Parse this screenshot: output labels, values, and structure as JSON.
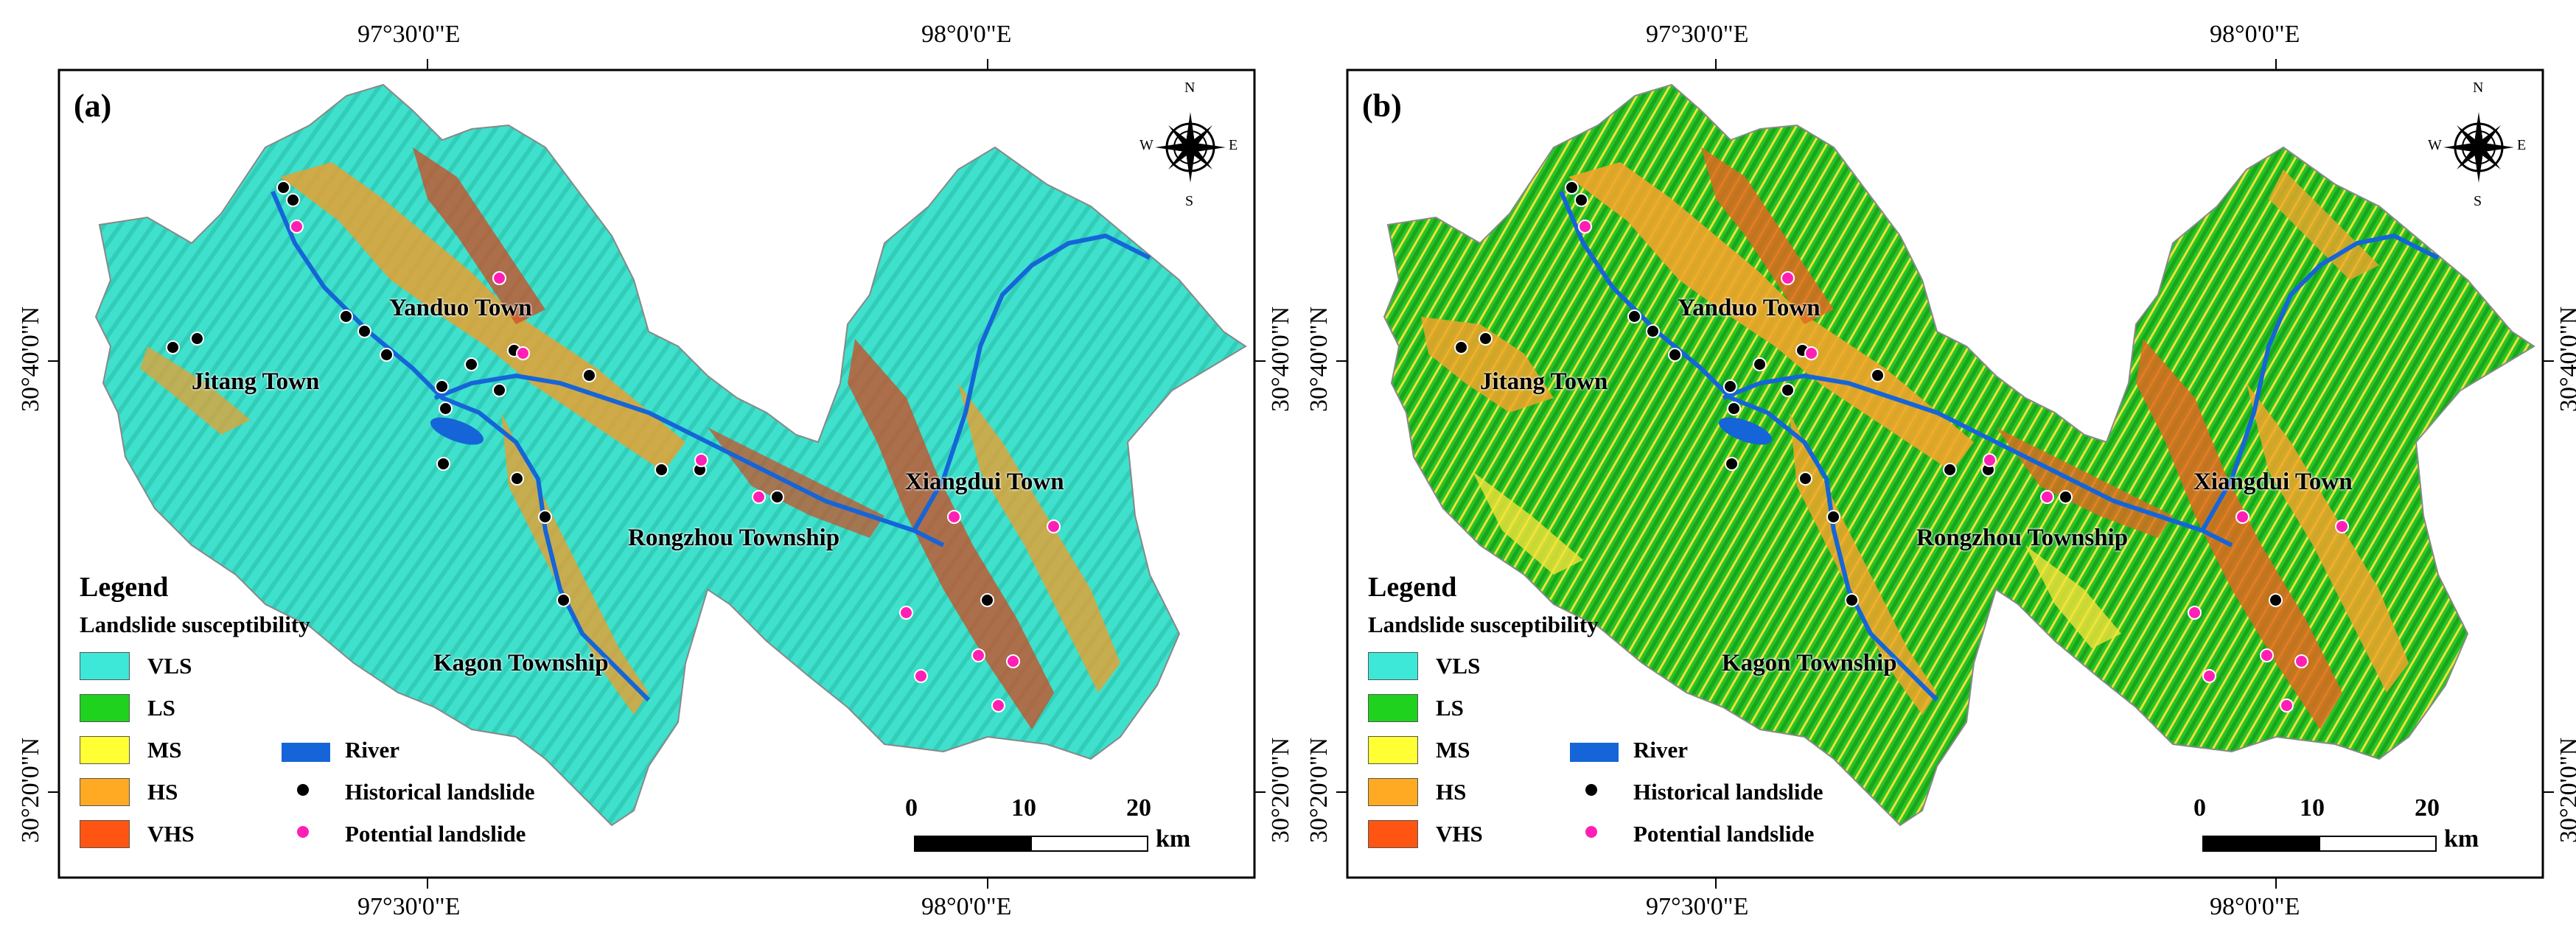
{
  "panels": [
    {
      "id": "a",
      "label": "(a)",
      "palette": {
        "dominant": "#3fe0cc",
        "secondary": "#2fd6c0",
        "mid": "#7fd94a",
        "high": "#e8a030",
        "vhigh": "#d04a20"
      }
    },
    {
      "id": "b",
      "label": "(b)",
      "palette": {
        "dominant": "#2cc42c",
        "secondary": "#f5e23a",
        "mid": "#f2b12e",
        "high": "#e06a20",
        "vhigh": "#c9401a"
      }
    }
  ],
  "axes": {
    "top": [
      "97°30'0\"E",
      "98°0'0\"E"
    ],
    "bottom": [
      "97°30'0\"E",
      "98°0'0\"E"
    ],
    "left": [
      "30°40'0\"N",
      "30°20'0\"N"
    ],
    "right": [
      "30°40'0\"N",
      "30°20'0\"N"
    ]
  },
  "towns": [
    "Yanduo Town",
    "Jitang Town",
    "Rongzhou Township",
    "Xiangdui Town",
    "Kagon Township"
  ],
  "legend": {
    "title": "Legend",
    "subtitle": "Landslide susceptibility",
    "classes": [
      {
        "label": "VLS",
        "color": "#3ee8d8"
      },
      {
        "label": "LS",
        "color": "#1ed21e"
      },
      {
        "label": "MS",
        "color": "#ffff33"
      },
      {
        "label": "HS",
        "color": "#ffaa22"
      },
      {
        "label": "VHS",
        "color": "#ff5512"
      }
    ],
    "river": {
      "label": "River",
      "color": "#1565d8"
    },
    "historical": {
      "label": "Historical landslide",
      "color": "#000000"
    },
    "potential": {
      "label": "Potential landslide",
      "color": "#ff1fb4"
    }
  },
  "compass": {
    "n": "N",
    "s": "S",
    "e": "E",
    "w": "W"
  },
  "scale": {
    "ticks": [
      "0",
      "10",
      "20"
    ],
    "unit": "km"
  }
}
